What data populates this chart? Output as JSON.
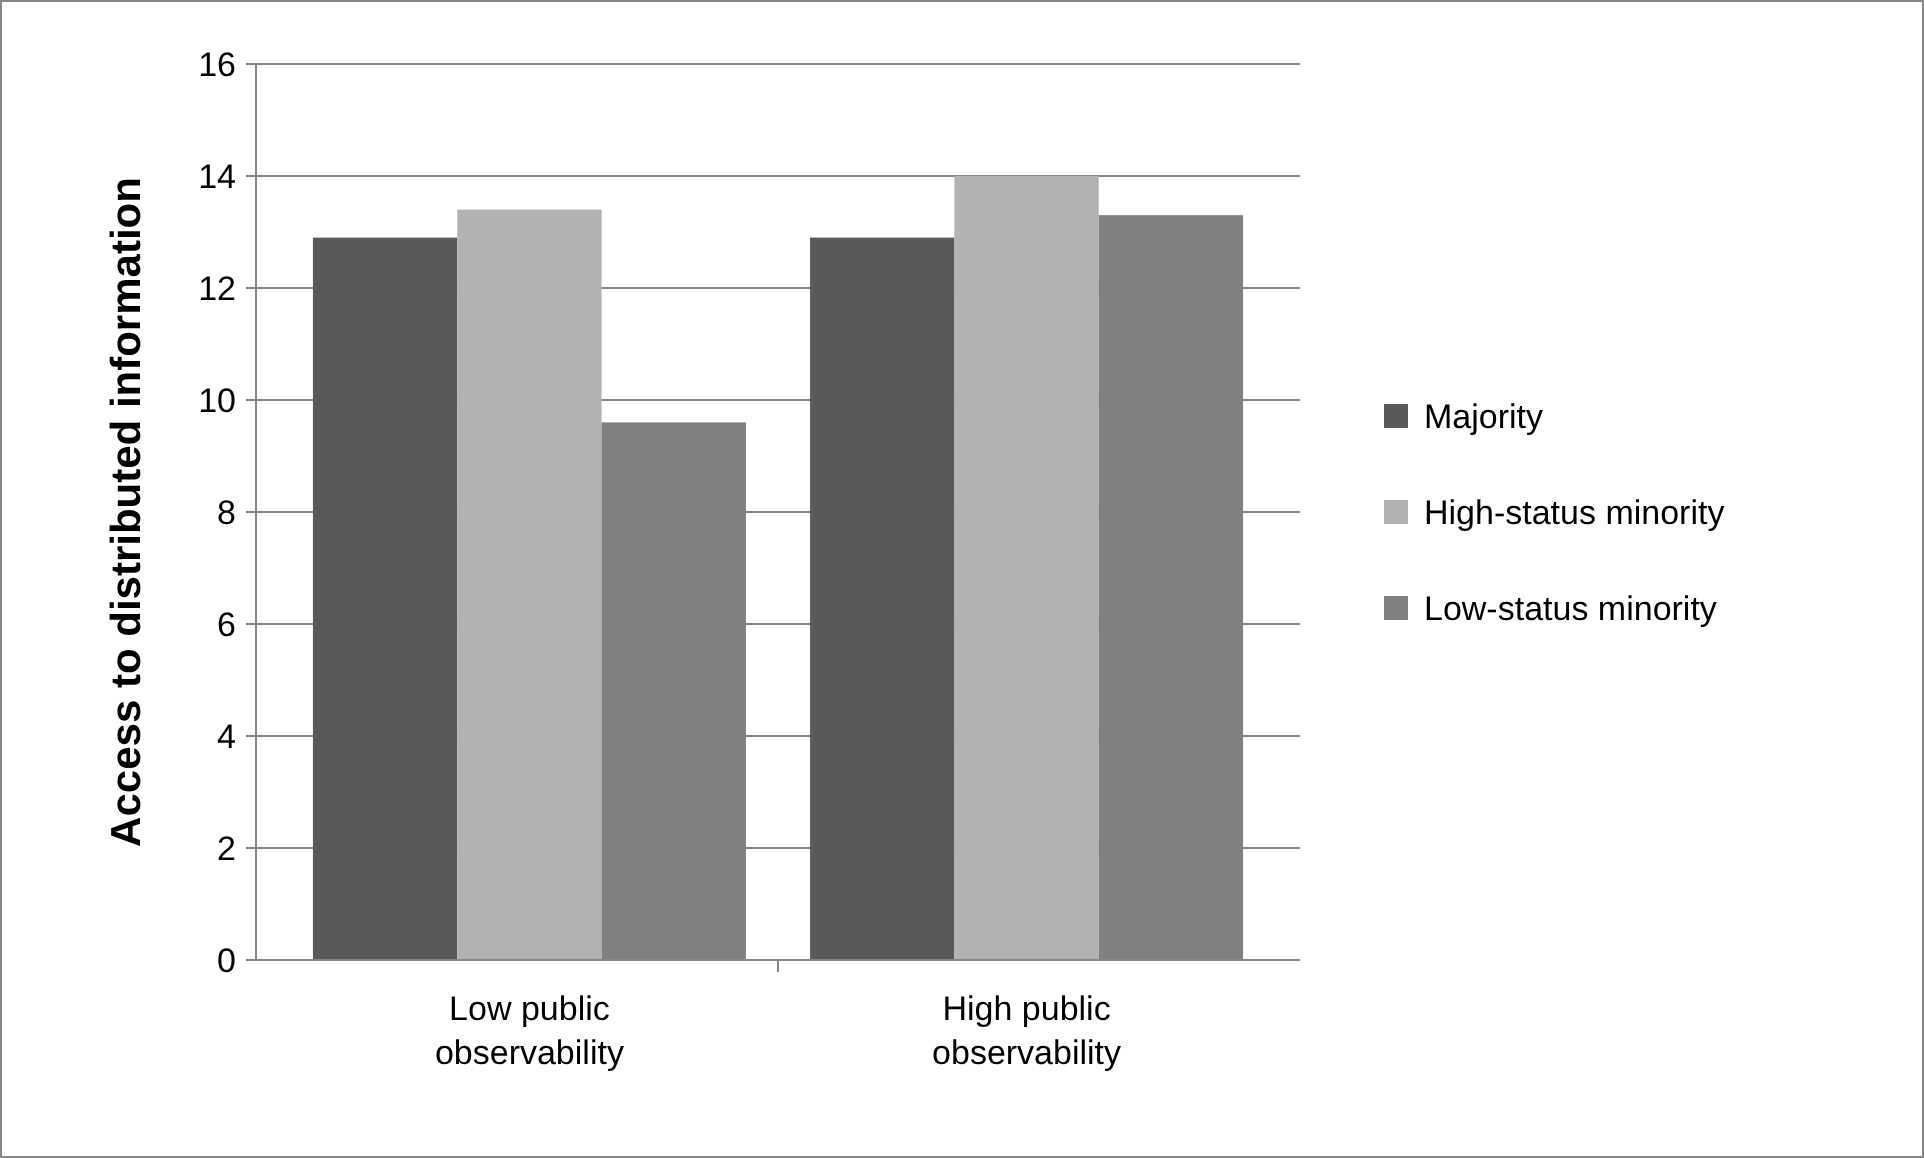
{
  "chart_data": {
    "type": "bar",
    "ylabel": "Access to distributed information",
    "categories": [
      "Low public observability",
      "High public observability"
    ],
    "series": [
      {
        "name": "Majority",
        "color": "#595959",
        "values": [
          12.9,
          12.9
        ]
      },
      {
        "name": "High-status minority",
        "color": "#b2b2b2",
        "values": [
          13.4,
          14.0
        ]
      },
      {
        "name": "Low-status minority",
        "color": "#808080",
        "values": [
          9.6,
          13.3
        ]
      }
    ],
    "ylim": [
      0,
      16
    ],
    "yticks": [
      0,
      2,
      4,
      6,
      8,
      10,
      12,
      14,
      16
    ],
    "grid": "y",
    "legend": "right"
  }
}
